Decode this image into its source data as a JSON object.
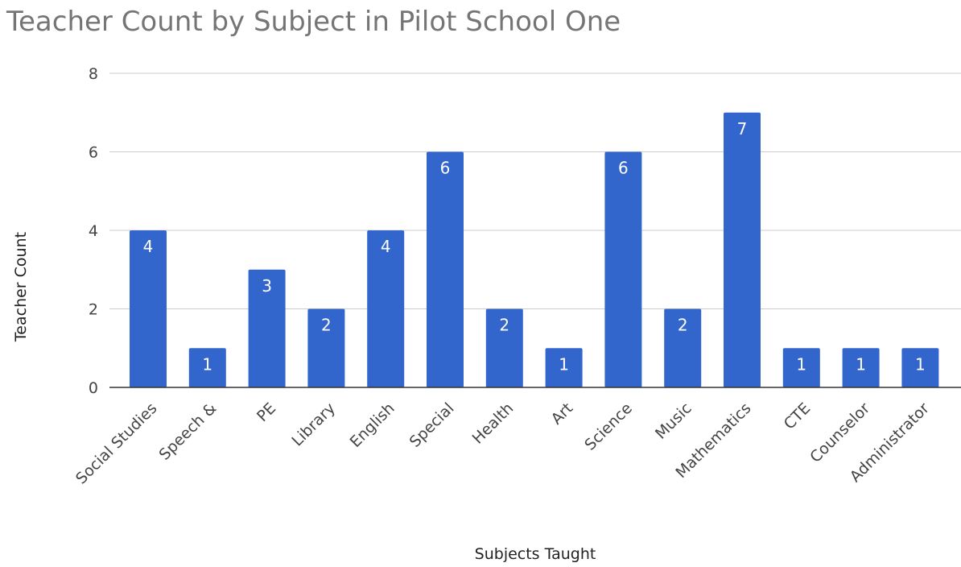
{
  "chart_data": {
    "type": "bar",
    "title": "Teacher Count by Subject in Pilot School One",
    "xlabel": "Subjects Taught",
    "ylabel": "Teacher Count",
    "categories": [
      "Social Studies",
      "Speech &",
      "PE",
      "Library",
      "English",
      "Special",
      "Health",
      "Art",
      "Science",
      "Music",
      "Mathematics",
      "CTE",
      "Counselor",
      "Administrator"
    ],
    "values": [
      4,
      1,
      3,
      2,
      4,
      6,
      2,
      1,
      6,
      2,
      7,
      1,
      1,
      1
    ],
    "ylim": [
      0,
      8
    ],
    "yticks": [
      "0",
      "2",
      "4",
      "6",
      "8"
    ],
    "grid": true,
    "data_labels": true,
    "colors": {
      "bar": "#3366cc",
      "bar_label": "#ffffff",
      "title": "#757575"
    }
  }
}
